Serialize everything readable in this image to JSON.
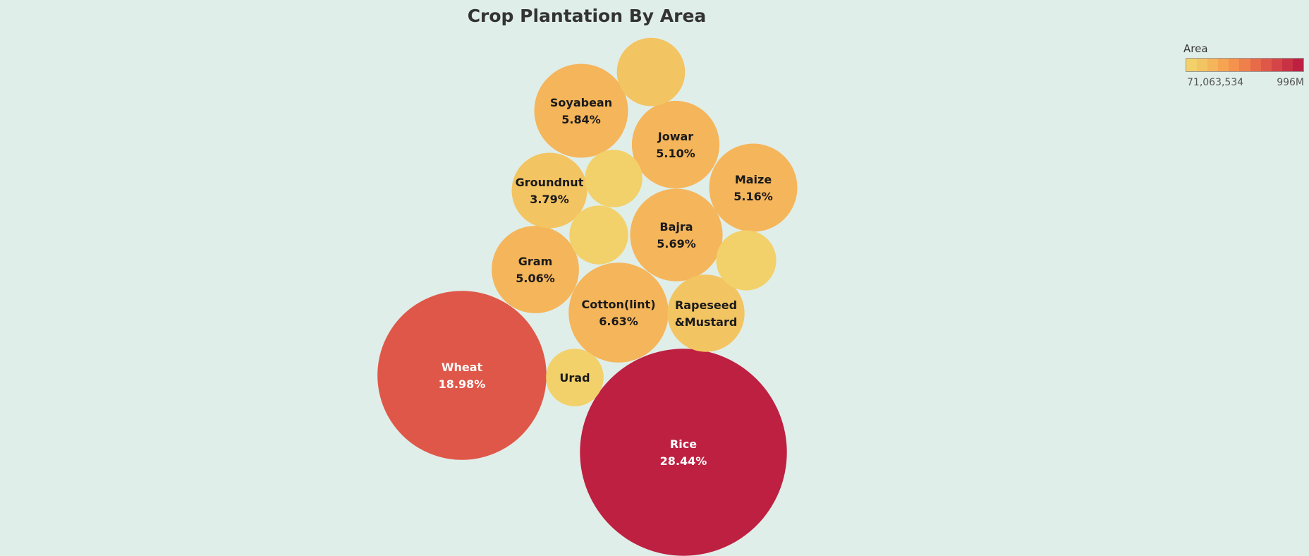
{
  "chart_data": {
    "type": "bubble",
    "title": "Crop Plantation By Area",
    "measure": "Area",
    "bubbles": [
      {
        "name": "Rice",
        "label": "Rice",
        "pct": "28.44%",
        "share": 28.44
      },
      {
        "name": "Wheat",
        "label": "Wheat",
        "pct": "18.98%",
        "share": 18.98
      },
      {
        "name": "Cotton(lint)",
        "label": "Cotton(lint)",
        "pct": "6.63%",
        "share": 6.63
      },
      {
        "name": "Soyabean",
        "label": "Soyabean",
        "pct": "5.84%",
        "share": 5.84
      },
      {
        "name": "Bajra",
        "label": "Bajra",
        "pct": "5.69%",
        "share": 5.69
      },
      {
        "name": "Maize",
        "label": "Maize",
        "pct": "5.16%",
        "share": 5.16
      },
      {
        "name": "Jowar",
        "label": "Jowar",
        "pct": "5.10%",
        "share": 5.1
      },
      {
        "name": "Gram",
        "label": "Gram",
        "pct": "5.06%",
        "share": 5.06
      },
      {
        "name": "Rapeseed &Mustard",
        "label": "Rapeseed\n&Mustard",
        "pct": "",
        "share": 3.95
      },
      {
        "name": "Groundnut",
        "label": "Groundnut",
        "pct": "3.79%",
        "share": 3.79
      },
      {
        "name": "",
        "label": "",
        "pct": "",
        "share": 3.1
      },
      {
        "name": "",
        "label": "",
        "pct": "",
        "share": 2.4
      },
      {
        "name": "",
        "label": "",
        "pct": "",
        "share": 2.3
      },
      {
        "name": "",
        "label": "",
        "pct": "",
        "share": 2.2
      },
      {
        "name": "Urad",
        "label": "Urad",
        "pct": "",
        "share": 2.2
      }
    ]
  },
  "legend": {
    "title": "Area",
    "min_label": "71,063,534",
    "max_label": "996M",
    "colors": [
      "#f2d16b",
      "#f3c462",
      "#f5b55a",
      "#f6a452",
      "#f5924d",
      "#ef7f4b",
      "#e76a49",
      "#df5748",
      "#d54547",
      "#c93244",
      "#bd2040"
    ]
  },
  "colors": {
    "background": "#e0eeea",
    "light_text": "#ffffff",
    "dark_text": "#1a1a1a"
  }
}
